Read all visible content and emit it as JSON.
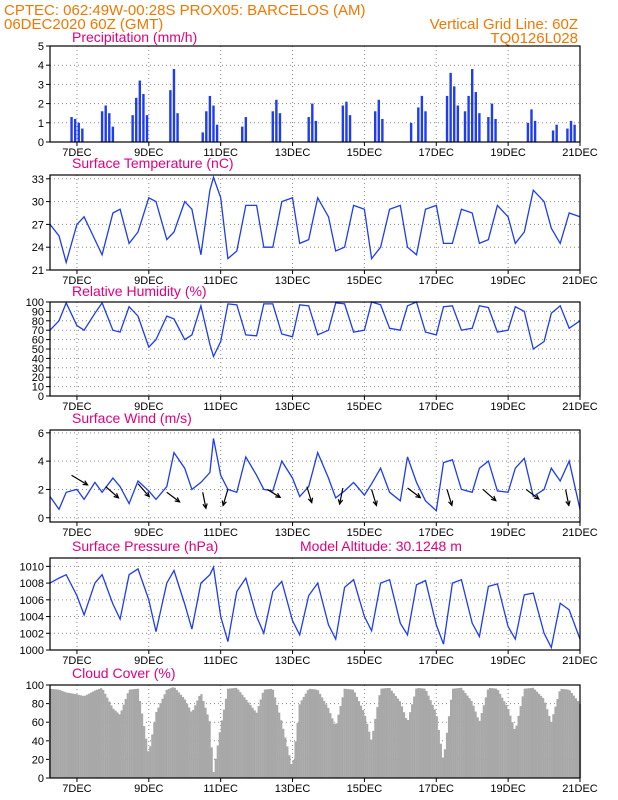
{
  "header": {
    "line1": "CPTEC:   062:49W-00:28S   PROX05: BARCELOS (AM)",
    "line2_left": "06DEC2020 60Z (GMT)",
    "line2_right": "Vertical Grid Line: 60Z",
    "line3_right": "TQ0126L028"
  },
  "x_axis": {
    "labels": [
      "7DEC",
      "9DEC",
      "11DEC",
      "13DEC",
      "15DEC",
      "17DEC",
      "19DEC",
      "21DEC"
    ],
    "label_days": [
      7,
      9,
      11,
      13,
      15,
      17,
      19,
      21
    ],
    "range_days": [
      6.25,
      21.0
    ]
  },
  "colors": {
    "header": "#f07800",
    "title": "#e0007f",
    "series": "#1e3cf0",
    "cloud": "#a8a8a8",
    "wind_arrow": "#000000"
  },
  "chart_data": [
    {
      "type": "bar",
      "title": "Precipitation (mm/h)",
      "ylim": [
        0,
        5
      ],
      "yticks": [
        0,
        1,
        2,
        3,
        4,
        5
      ],
      "series": [
        {
          "events": [
            {
              "x": 6.85,
              "v": 1.3
            },
            {
              "x": 6.95,
              "v": 1.2
            },
            {
              "x": 7.05,
              "v": 1.0
            },
            {
              "x": 7.15,
              "v": 0.7
            },
            {
              "x": 7.7,
              "v": 1.6
            },
            {
              "x": 7.8,
              "v": 1.9
            },
            {
              "x": 7.9,
              "v": 1.5
            },
            {
              "x": 8.0,
              "v": 0.8
            },
            {
              "x": 8.55,
              "v": 1.4
            },
            {
              "x": 8.65,
              "v": 2.3
            },
            {
              "x": 8.75,
              "v": 3.2
            },
            {
              "x": 8.85,
              "v": 2.5
            },
            {
              "x": 8.95,
              "v": 1.4
            },
            {
              "x": 9.6,
              "v": 2.7
            },
            {
              "x": 9.7,
              "v": 3.8
            },
            {
              "x": 9.8,
              "v": 1.5
            },
            {
              "x": 10.5,
              "v": 0.5
            },
            {
              "x": 10.6,
              "v": 1.6
            },
            {
              "x": 10.7,
              "v": 2.4
            },
            {
              "x": 10.8,
              "v": 1.9
            },
            {
              "x": 10.9,
              "v": 0.9
            },
            {
              "x": 11.6,
              "v": 0.8
            },
            {
              "x": 11.7,
              "v": 1.3
            },
            {
              "x": 12.45,
              "v": 1.6
            },
            {
              "x": 12.55,
              "v": 2.2
            },
            {
              "x": 12.65,
              "v": 1.5
            },
            {
              "x": 13.45,
              "v": 1.3
            },
            {
              "x": 13.55,
              "v": 2.0
            },
            {
              "x": 13.65,
              "v": 1.1
            },
            {
              "x": 14.4,
              "v": 1.9
            },
            {
              "x": 14.5,
              "v": 2.1
            },
            {
              "x": 14.6,
              "v": 1.4
            },
            {
              "x": 15.3,
              "v": 1.6
            },
            {
              "x": 15.4,
              "v": 2.2
            },
            {
              "x": 15.5,
              "v": 1.2
            },
            {
              "x": 16.3,
              "v": 1.0
            },
            {
              "x": 16.5,
              "v": 1.8
            },
            {
              "x": 16.6,
              "v": 2.4
            },
            {
              "x": 16.7,
              "v": 1.6
            },
            {
              "x": 17.3,
              "v": 2.4
            },
            {
              "x": 17.4,
              "v": 3.6
            },
            {
              "x": 17.5,
              "v": 2.9
            },
            {
              "x": 17.6,
              "v": 1.9
            },
            {
              "x": 17.8,
              "v": 1.6
            },
            {
              "x": 17.9,
              "v": 2.4
            },
            {
              "x": 18.0,
              "v": 3.8
            },
            {
              "x": 18.1,
              "v": 2.6
            },
            {
              "x": 18.2,
              "v": 1.5
            },
            {
              "x": 18.45,
              "v": 1.3
            },
            {
              "x": 18.55,
              "v": 2.0
            },
            {
              "x": 18.65,
              "v": 1.2
            },
            {
              "x": 19.55,
              "v": 1.0
            },
            {
              "x": 19.65,
              "v": 1.7
            },
            {
              "x": 19.75,
              "v": 1.1
            },
            {
              "x": 20.25,
              "v": 0.6
            },
            {
              "x": 20.35,
              "v": 0.9
            },
            {
              "x": 20.65,
              "v": 0.7
            },
            {
              "x": 20.75,
              "v": 1.1
            },
            {
              "x": 20.85,
              "v": 0.9
            }
          ]
        }
      ]
    },
    {
      "type": "line",
      "title": "Surface Temperature (nC)",
      "ylim": [
        21,
        33.5
      ],
      "yticks": [
        21,
        24,
        27,
        30,
        33
      ],
      "series": [
        {
          "x": [
            6.25,
            6.5,
            6.7,
            7.0,
            7.2,
            7.5,
            7.7,
            8.0,
            8.2,
            8.45,
            8.7,
            9.0,
            9.2,
            9.5,
            9.7,
            10.0,
            10.2,
            10.45,
            10.7,
            10.8,
            11.0,
            11.2,
            11.45,
            11.7,
            12.0,
            12.2,
            12.45,
            12.7,
            13.0,
            13.2,
            13.45,
            13.7,
            14.0,
            14.2,
            14.45,
            14.7,
            15.0,
            15.2,
            15.45,
            15.7,
            16.0,
            16.2,
            16.45,
            16.7,
            17.0,
            17.2,
            17.45,
            17.7,
            18.0,
            18.2,
            18.45,
            18.7,
            19.0,
            19.2,
            19.45,
            19.7,
            20.0,
            20.2,
            20.45,
            20.7,
            21.0
          ],
          "y": [
            27.0,
            25.5,
            22.0,
            27.0,
            28.0,
            25.0,
            23.0,
            28.5,
            29.0,
            24.5,
            26.0,
            30.5,
            30.0,
            25.0,
            26.0,
            30.0,
            29.0,
            23.0,
            31.5,
            33.2,
            30.5,
            22.5,
            23.5,
            29.5,
            29.5,
            24.0,
            24.0,
            30.0,
            30.5,
            24.5,
            25.0,
            30.5,
            28.0,
            23.5,
            24.0,
            29.5,
            29.0,
            22.5,
            24.0,
            29.0,
            29.5,
            24.0,
            23.0,
            29.0,
            29.5,
            24.5,
            24.5,
            29.0,
            28.5,
            24.5,
            25.0,
            29.5,
            28.0,
            24.5,
            26.0,
            31.5,
            30.0,
            26.5,
            24.5,
            28.5,
            28.0
          ]
        }
      ]
    },
    {
      "type": "line",
      "title": "Relative Humidity (%)",
      "ylim": [
        0,
        100
      ],
      "yticks": [
        0,
        10,
        20,
        30,
        40,
        50,
        60,
        70,
        80,
        90,
        100
      ],
      "series": [
        {
          "x": [
            6.25,
            6.5,
            6.7,
            7.0,
            7.2,
            7.5,
            7.7,
            8.0,
            8.2,
            8.45,
            8.7,
            9.0,
            9.2,
            9.5,
            9.7,
            10.0,
            10.2,
            10.45,
            10.7,
            10.8,
            11.0,
            11.2,
            11.45,
            11.7,
            12.0,
            12.2,
            12.45,
            12.7,
            13.0,
            13.2,
            13.45,
            13.7,
            14.0,
            14.2,
            14.45,
            14.7,
            15.0,
            15.2,
            15.45,
            15.7,
            16.0,
            16.2,
            16.45,
            16.7,
            17.0,
            17.2,
            17.45,
            17.7,
            18.0,
            18.2,
            18.45,
            18.7,
            19.0,
            19.2,
            19.45,
            19.7,
            20.0,
            20.2,
            20.45,
            20.7,
            21.0
          ],
          "y": [
            70,
            80,
            99,
            75,
            70,
            88,
            99,
            70,
            68,
            95,
            85,
            52,
            60,
            85,
            82,
            60,
            65,
            96,
            55,
            42,
            58,
            98,
            97,
            65,
            64,
            98,
            98,
            66,
            63,
            97,
            96,
            65,
            70,
            99,
            98,
            68,
            70,
            100,
            97,
            72,
            70,
            96,
            100,
            68,
            65,
            95,
            96,
            70,
            72,
            96,
            94,
            68,
            70,
            95,
            90,
            50,
            58,
            88,
            96,
            72,
            80
          ]
        }
      ]
    },
    {
      "type": "line",
      "title": "Surface Wind (m/s)",
      "ylim": [
        -0.3,
        6.2
      ],
      "yticks": [
        0,
        2,
        4,
        6
      ],
      "series": [
        {
          "x": [
            6.25,
            6.5,
            6.7,
            7.0,
            7.2,
            7.5,
            7.7,
            8.0,
            8.2,
            8.45,
            8.7,
            9.0,
            9.2,
            9.5,
            9.7,
            10.0,
            10.2,
            10.45,
            10.7,
            10.8,
            11.0,
            11.2,
            11.45,
            11.7,
            12.0,
            12.2,
            12.45,
            12.7,
            13.0,
            13.2,
            13.45,
            13.7,
            14.0,
            14.2,
            14.45,
            14.7,
            15.0,
            15.2,
            15.45,
            15.7,
            16.0,
            16.2,
            16.45,
            16.7,
            17.0,
            17.2,
            17.45,
            17.7,
            18.0,
            18.2,
            18.45,
            18.7,
            19.0,
            19.2,
            19.45,
            19.7,
            20.0,
            20.2,
            20.45,
            20.7,
            21.0
          ],
          "y": [
            1.5,
            0.6,
            1.8,
            2.0,
            1.3,
            2.5,
            1.8,
            2.8,
            2.2,
            1.0,
            2.6,
            1.9,
            1.3,
            2.2,
            4.6,
            3.5,
            2.0,
            2.5,
            3.2,
            5.6,
            3.0,
            2.0,
            1.8,
            4.3,
            3.0,
            2.0,
            1.9,
            4.0,
            2.8,
            1.5,
            2.2,
            4.6,
            2.8,
            1.4,
            1.9,
            2.5,
            1.6,
            2.4,
            3.5,
            1.8,
            1.2,
            4.3,
            2.5,
            1.2,
            0.5,
            3.9,
            4.1,
            2.0,
            1.8,
            3.5,
            4.0,
            1.9,
            1.8,
            3.5,
            4.2,
            1.5,
            2.0,
            3.5,
            2.6,
            4.0,
            0.6
          ],
          "arrows": [
            {
              "x": 6.85,
              "v": 3.0,
              "dx": 1,
              "dy": -0.6
            },
            {
              "x": 7.8,
              "v": 2.2,
              "dx": 0.8,
              "dy": -0.7
            },
            {
              "x": 8.7,
              "v": 2.4,
              "dx": 0.7,
              "dy": -0.8
            },
            {
              "x": 9.5,
              "v": 1.8,
              "dx": 0.8,
              "dy": -0.6
            },
            {
              "x": 10.5,
              "v": 1.8,
              "dx": 0.2,
              "dy": -1
            },
            {
              "x": 11.2,
              "v": 2.0,
              "dx": -0.3,
              "dy": -1
            },
            {
              "x": 12.3,
              "v": 2.0,
              "dx": 0.8,
              "dy": -0.5
            },
            {
              "x": 13.4,
              "v": 2.2,
              "dx": 0.3,
              "dy": -1
            },
            {
              "x": 14.4,
              "v": 2.1,
              "dx": -0.2,
              "dy": -1
            },
            {
              "x": 15.2,
              "v": 2.0,
              "dx": 0.3,
              "dy": -1
            },
            {
              "x": 16.2,
              "v": 2.1,
              "dx": 0.8,
              "dy": -0.6
            },
            {
              "x": 17.3,
              "v": 2.0,
              "dx": 0.3,
              "dy": -1
            },
            {
              "x": 18.3,
              "v": 2.0,
              "dx": 0.8,
              "dy": -0.7
            },
            {
              "x": 19.5,
              "v": 2.0,
              "dx": 0.8,
              "dy": -0.6
            },
            {
              "x": 20.6,
              "v": 2.0,
              "dx": 0.2,
              "dy": -1
            }
          ]
        }
      ]
    },
    {
      "type": "line",
      "title": "Surface Pressure (hPa)",
      "subtitle": "Model Altitude: 30.1248 m",
      "ylim": [
        1000,
        1011
      ],
      "yticks": [
        1000,
        1002,
        1004,
        1006,
        1008,
        1010
      ],
      "series": [
        {
          "x": [
            6.25,
            6.5,
            6.7,
            7.0,
            7.2,
            7.5,
            7.7,
            8.0,
            8.2,
            8.45,
            8.7,
            9.0,
            9.2,
            9.5,
            9.7,
            10.0,
            10.2,
            10.45,
            10.7,
            10.8,
            11.0,
            11.2,
            11.45,
            11.7,
            12.0,
            12.2,
            12.45,
            12.7,
            13.0,
            13.2,
            13.45,
            13.7,
            14.0,
            14.2,
            14.45,
            14.7,
            15.0,
            15.2,
            15.45,
            15.7,
            16.0,
            16.2,
            16.45,
            16.7,
            17.0,
            17.2,
            17.45,
            17.7,
            18.0,
            18.2,
            18.45,
            18.7,
            19.0,
            19.2,
            19.45,
            19.7,
            20.0,
            20.2,
            20.45,
            20.7,
            21.0
          ],
          "y": [
            1008.0,
            1008.6,
            1009.0,
            1006.5,
            1004.2,
            1008.0,
            1009.0,
            1005.5,
            1003.7,
            1009.0,
            1009.7,
            1006.0,
            1002.2,
            1008.0,
            1009.5,
            1005.5,
            1002.5,
            1008.0,
            1009.0,
            1009.9,
            1004.0,
            1001.0,
            1007.0,
            1008.6,
            1004.0,
            1002.0,
            1007.0,
            1008.2,
            1003.5,
            1001.8,
            1006.5,
            1008.0,
            1003.0,
            1001.3,
            1007.5,
            1008.4,
            1004.0,
            1002.3,
            1008.0,
            1008.4,
            1003.2,
            1001.8,
            1007.8,
            1008.3,
            1003.0,
            1000.7,
            1008.0,
            1008.4,
            1003.2,
            1001.6,
            1007.6,
            1007.9,
            1002.8,
            1001.3,
            1006.6,
            1006.8,
            1002.0,
            1000.3,
            1005.6,
            1004.8,
            1001.3
          ]
        }
      ]
    },
    {
      "type": "area",
      "title": "Cloud Cover (%)",
      "ylim": [
        0,
        100
      ],
      "yticks": [
        0,
        20,
        40,
        60,
        80,
        100
      ],
      "series": [
        {
          "x": [
            6.25,
            6.5,
            6.7,
            7.0,
            7.2,
            7.5,
            7.7,
            8.0,
            8.2,
            8.45,
            8.7,
            9.0,
            9.2,
            9.5,
            9.7,
            10.0,
            10.2,
            10.45,
            10.7,
            10.8,
            11.0,
            11.2,
            11.45,
            11.7,
            12.0,
            12.2,
            12.45,
            12.7,
            13.0,
            13.2,
            13.45,
            13.7,
            14.0,
            14.2,
            14.45,
            14.7,
            15.0,
            15.2,
            15.45,
            15.7,
            16.0,
            16.2,
            16.45,
            16.7,
            17.0,
            17.2,
            17.45,
            17.7,
            18.0,
            18.2,
            18.45,
            18.7,
            19.0,
            19.2,
            19.45,
            19.7,
            20.0,
            20.2,
            20.45,
            20.7,
            21.0
          ],
          "y": [
            96,
            95,
            92,
            90,
            88,
            94,
            97,
            75,
            68,
            95,
            96,
            25,
            70,
            95,
            98,
            85,
            70,
            92,
            60,
            5,
            55,
            96,
            97,
            85,
            70,
            95,
            96,
            60,
            10,
            80,
            96,
            95,
            75,
            55,
            96,
            95,
            70,
            40,
            96,
            97,
            82,
            60,
            97,
            96,
            70,
            18,
            96,
            97,
            82,
            60,
            97,
            96,
            75,
            50,
            96,
            97,
            85,
            60,
            96,
            95,
            80
          ]
        }
      ]
    }
  ]
}
